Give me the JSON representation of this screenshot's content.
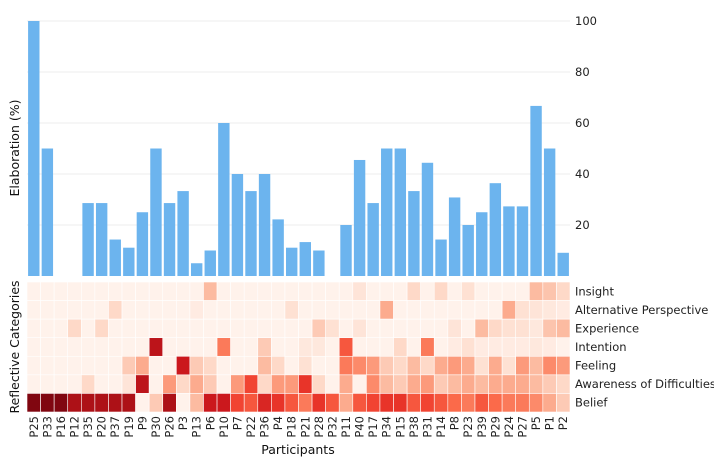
{
  "chart_data": [
    {
      "type": "bar",
      "ylabel": "Elaboration (%)",
      "ylim": [
        0,
        100
      ],
      "yticks": [
        20,
        40,
        60,
        80,
        100
      ],
      "grid": true,
      "bar_color": "#6CB4EE",
      "categories": [
        "P25",
        "P33",
        "P16",
        "P12",
        "P35",
        "P20",
        "P37",
        "P19",
        "P9",
        "P30",
        "P26",
        "P3",
        "P13",
        "P6",
        "P10",
        "P7",
        "P22",
        "P36",
        "P4",
        "P18",
        "P21",
        "P28",
        "P32",
        "P11",
        "P40",
        "P17",
        "P34",
        "P15",
        "P38",
        "P31",
        "P14",
        "P8",
        "P23",
        "P39",
        "P29",
        "P24",
        "P27",
        "P5",
        "P1",
        "P2"
      ],
      "values": [
        100,
        50,
        0,
        0,
        28.6,
        28.6,
        14.3,
        11.1,
        25,
        50,
        28.6,
        33.3,
        5,
        10,
        60,
        40,
        33.3,
        40,
        22.2,
        11.1,
        13.3,
        10,
        0,
        20,
        45.5,
        28.6,
        50,
        50,
        33.3,
        44.4,
        14.3,
        30.8,
        20,
        25,
        36.4,
        27.3,
        27.3,
        66.7,
        50,
        9.1
      ]
    },
    {
      "type": "heatmap",
      "xlabel": "Participants",
      "ylabel": "Reflective Categories",
      "rows": [
        "Insight",
        "Alternative Perspective",
        "Experience",
        "Intention",
        "Feeling",
        "Awareness of Difficulties",
        "Belief"
      ],
      "columns": [
        "P25",
        "P33",
        "P16",
        "P12",
        "P35",
        "P20",
        "P37",
        "P19",
        "P9",
        "P30",
        "P26",
        "P3",
        "P13",
        "P6",
        "P10",
        "P7",
        "P22",
        "P36",
        "P4",
        "P18",
        "P21",
        "P28",
        "P32",
        "P11",
        "P40",
        "P17",
        "P34",
        "P15",
        "P38",
        "P31",
        "P14",
        "P8",
        "P23",
        "P39",
        "P29",
        "P24",
        "P27",
        "P5",
        "P1",
        "P2"
      ],
      "colormap": "Reds",
      "value_range": [
        0,
        1
      ],
      "values": [
        [
          0.02,
          0.02,
          0.02,
          0.02,
          0.02,
          0.02,
          0.02,
          0.02,
          0.02,
          0.02,
          0.02,
          0.02,
          0.02,
          0.25,
          0.02,
          0.02,
          0.02,
          0.02,
          0.02,
          0.02,
          0.02,
          0.02,
          0.02,
          0.02,
          0.1,
          0.02,
          0.02,
          0.02,
          0.15,
          0.02,
          0.15,
          0.02,
          0.12,
          0.02,
          0.02,
          0.02,
          0.02,
          0.25,
          0.22,
          0.15
        ],
        [
          0.02,
          0.02,
          0.02,
          0.02,
          0.02,
          0.02,
          0.15,
          0.02,
          0.02,
          0.02,
          0.02,
          0.02,
          0.06,
          0.02,
          0.02,
          0.02,
          0.02,
          0.02,
          0.02,
          0.12,
          0.02,
          0.02,
          0.02,
          0.02,
          0.02,
          0.02,
          0.3,
          0.02,
          0.02,
          0.02,
          0.02,
          0.02,
          0.02,
          0.02,
          0.02,
          0.3,
          0.12,
          0.1,
          0.08,
          0.06
        ],
        [
          0.02,
          0.02,
          0.02,
          0.15,
          0.02,
          0.15,
          0.02,
          0.02,
          0.02,
          0.02,
          0.02,
          0.02,
          0.02,
          0.02,
          0.02,
          0.02,
          0.02,
          0.02,
          0.02,
          0.02,
          0.02,
          0.2,
          0.12,
          0.02,
          0.1,
          0.02,
          0.02,
          0.02,
          0.02,
          0.02,
          0.02,
          0.1,
          0.02,
          0.25,
          0.15,
          0.12,
          0.12,
          0.08,
          0.22,
          0.25
        ],
        [
          0.02,
          0.02,
          0.02,
          0.02,
          0.02,
          0.02,
          0.02,
          0.02,
          0.02,
          0.8,
          0.02,
          0.02,
          0.02,
          0.02,
          0.45,
          0.02,
          0.02,
          0.2,
          0.02,
          0.02,
          0.08,
          0.08,
          0.02,
          0.55,
          0.02,
          0.02,
          0.02,
          0.15,
          0.02,
          0.45,
          0.02,
          0.06,
          0.12,
          0.06,
          0.06,
          0.06,
          0.06,
          0.08,
          0.06,
          0.02
        ],
        [
          0.02,
          0.02,
          0.02,
          0.02,
          0.02,
          0.02,
          0.02,
          0.2,
          0.3,
          0.02,
          0.02,
          0.75,
          0.2,
          0.15,
          0.02,
          0.02,
          0.02,
          0.25,
          0.15,
          0.02,
          0.12,
          0.02,
          0.02,
          0.45,
          0.4,
          0.35,
          0.2,
          0.15,
          0.25,
          0.15,
          0.3,
          0.35,
          0.3,
          0.12,
          0.3,
          0.12,
          0.35,
          0.25,
          0.4,
          0.35
        ],
        [
          0.02,
          0.02,
          0.02,
          0.02,
          0.15,
          0.02,
          0.02,
          0.1,
          0.8,
          0.02,
          0.35,
          0.15,
          0.3,
          0.2,
          0.02,
          0.35,
          0.6,
          0.15,
          0.35,
          0.35,
          0.65,
          0.15,
          0.02,
          0.3,
          0.02,
          0.4,
          0.25,
          0.2,
          0.3,
          0.35,
          0.2,
          0.25,
          0.3,
          0.25,
          0.3,
          0.3,
          0.3,
          0.25,
          0.2,
          0.15
        ],
        [
          0.95,
          0.95,
          0.95,
          0.85,
          0.85,
          0.85,
          0.85,
          0.85,
          0.02,
          0.2,
          0.85,
          0.02,
          0.25,
          0.75,
          0.75,
          0.6,
          0.55,
          0.7,
          0.65,
          0.55,
          0.45,
          0.65,
          0.55,
          0.3,
          0.55,
          0.6,
          0.65,
          0.65,
          0.55,
          0.6,
          0.55,
          0.5,
          0.45,
          0.55,
          0.5,
          0.45,
          0.45,
          0.4,
          0.3,
          0.2
        ]
      ]
    }
  ]
}
